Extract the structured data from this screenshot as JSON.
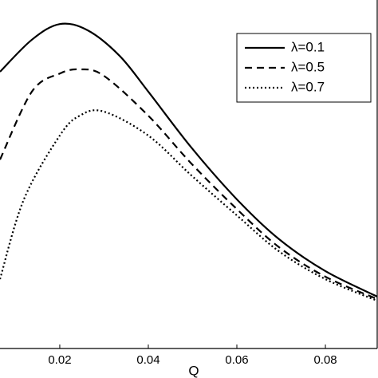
{
  "chart_data": {
    "type": "line",
    "x_label": "Q",
    "xlim": [
      0.0065,
      0.0917
    ],
    "xticks": [
      0.02,
      0.04,
      0.06,
      0.08
    ],
    "ylim": [
      0,
      1
    ],
    "legend": "upper right",
    "grid": false,
    "series": [
      {
        "name": "λ=0.1",
        "color": "#000000",
        "dash": "solid",
        "x": [
          0.0065,
          0.0137,
          0.02,
          0.0263,
          0.0335,
          0.04,
          0.0497,
          0.06,
          0.0695,
          0.08,
          0.0917
        ],
        "values": [
          0.794,
          0.886,
          0.931,
          0.913,
          0.84,
          0.737,
          0.577,
          0.428,
          0.314,
          0.222,
          0.149
        ]
      },
      {
        "name": "λ=0.5",
        "color": "#000000",
        "dash": "dashed",
        "x": [
          0.0065,
          0.0137,
          0.02,
          0.0245,
          0.0299,
          0.04,
          0.0497,
          0.06,
          0.0695,
          0.08,
          0.0917
        ],
        "values": [
          0.542,
          0.737,
          0.789,
          0.801,
          0.783,
          0.668,
          0.531,
          0.4,
          0.291,
          0.206,
          0.142
        ]
      },
      {
        "name": "λ=0.7",
        "color": "#000000",
        "dash": "dotted",
        "x": [
          0.0065,
          0.0119,
          0.02,
          0.0245,
          0.0299,
          0.04,
          0.0497,
          0.06,
          0.0695,
          0.08,
          0.0917
        ],
        "values": [
          0.199,
          0.428,
          0.611,
          0.668,
          0.68,
          0.611,
          0.497,
          0.382,
          0.279,
          0.199,
          0.137
        ]
      }
    ]
  }
}
